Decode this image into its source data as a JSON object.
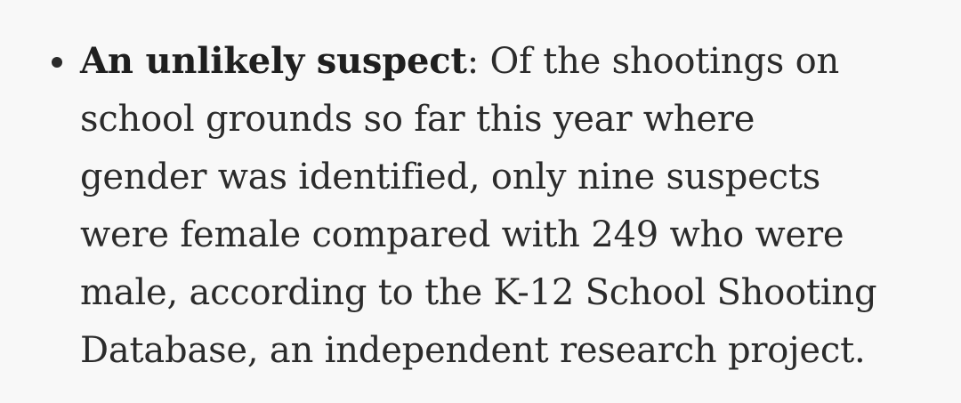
{
  "bullet": {
    "lead": "An unlikely suspect",
    "lead_sep": ":",
    "line1_rest": " Of the shootings on",
    "line2": "school grounds so far this year where",
    "line3": "gender was identified, only nine suspects",
    "line4": "were female compared with 249 who were",
    "line5": "male, according to the K-12 School Shooting",
    "line6": "Database, an independent research project."
  }
}
